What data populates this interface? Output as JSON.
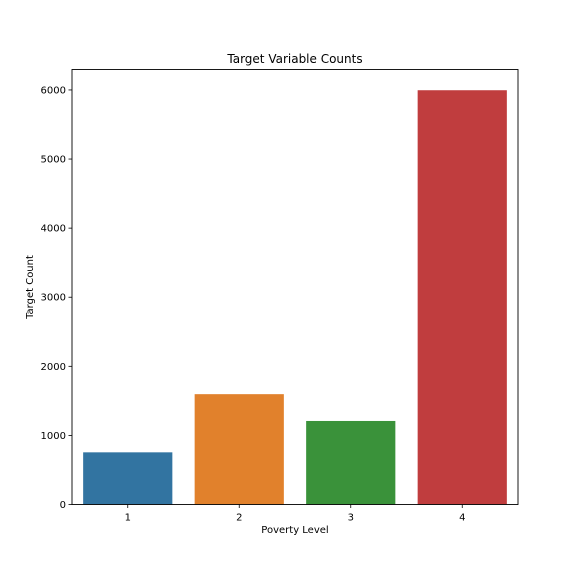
{
  "chart_data": {
    "type": "bar",
    "title": "Target Variable Counts",
    "xlabel": "Poverty Level",
    "ylabel": "Target Count",
    "categories": [
      "1",
      "2",
      "3",
      "4"
    ],
    "values": [
      755,
      1597,
      1209,
      5996
    ],
    "colors": [
      "#3274a1",
      "#e1812c",
      "#3a923a",
      "#c03d3e"
    ],
    "ylim": [
      0,
      6296
    ],
    "yticks": [
      0,
      1000,
      2000,
      3000,
      4000,
      5000,
      6000
    ],
    "grid": false,
    "legend": "none"
  }
}
